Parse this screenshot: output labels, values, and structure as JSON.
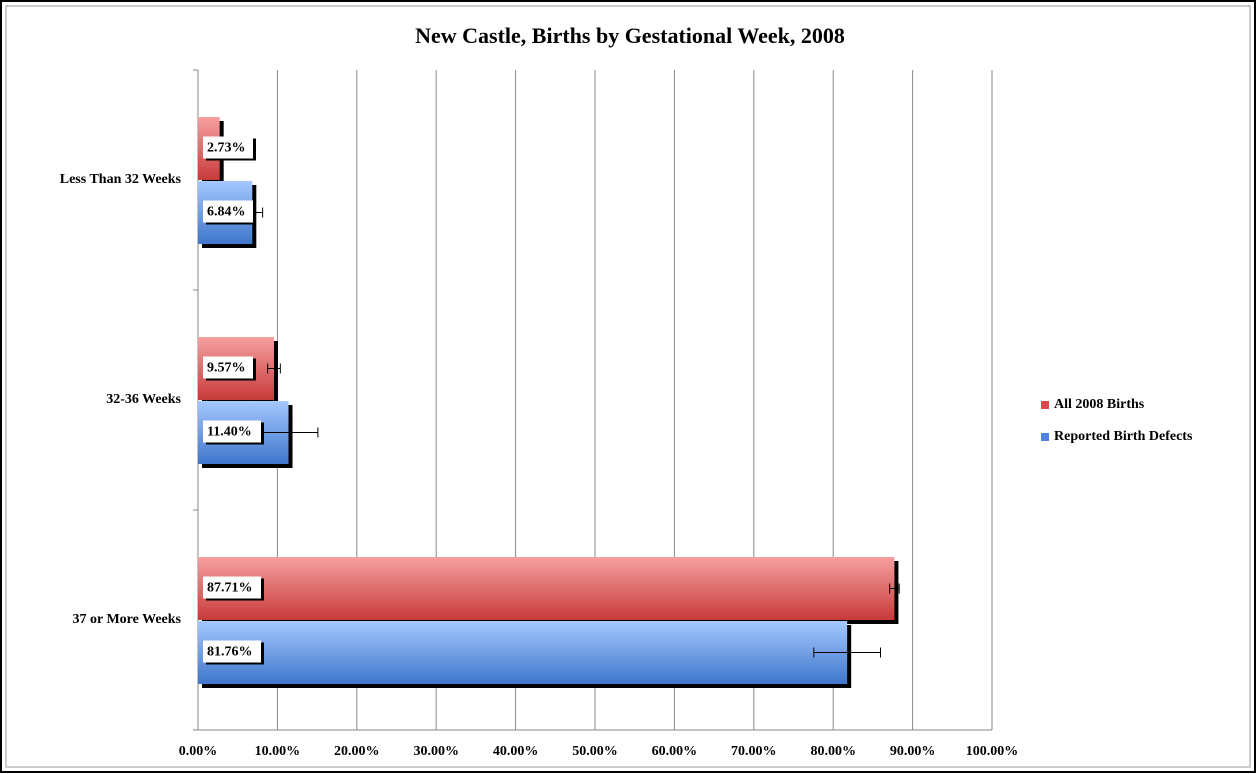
{
  "chart_data": {
    "type": "hbar",
    "title": "New Castle, Births by Gestational Week, 2008",
    "categories": [
      "Less Than 32 Weeks",
      "32-36 Weeks",
      "37 or More Weeks"
    ],
    "series": [
      {
        "name": "All 2008 Births",
        "color": "#d94a4a",
        "values": [
          2.73,
          9.57,
          87.71
        ],
        "value_labels": [
          "2.73%",
          "9.57%",
          "87.71%"
        ],
        "errors": [
          0.3,
          0.8,
          0.6
        ]
      },
      {
        "name": "Reported Birth Defects",
        "color": "#4f86db",
        "values": [
          6.84,
          11.4,
          81.76
        ],
        "value_labels": [
          "6.84%",
          "11.40%",
          "81.76%"
        ],
        "errors": [
          1.3,
          3.7,
          4.2
        ]
      }
    ],
    "xlim": [
      0,
      100
    ],
    "xticks": [
      {
        "value": 0,
        "label": "0.00%"
      },
      {
        "value": 10,
        "label": "10.00%"
      },
      {
        "value": 20,
        "label": "20.00%"
      },
      {
        "value": 30,
        "label": "30.00%"
      },
      {
        "value": 40,
        "label": "40.00%"
      },
      {
        "value": 50,
        "label": "50.00%"
      },
      {
        "value": 60,
        "label": "60.00%"
      },
      {
        "value": 70,
        "label": "70.00%"
      },
      {
        "value": 80,
        "label": "80.00%"
      },
      {
        "value": 90,
        "label": "90.00%"
      },
      {
        "value": 100,
        "label": "100.00%"
      }
    ],
    "grid": true,
    "legend": "right"
  }
}
